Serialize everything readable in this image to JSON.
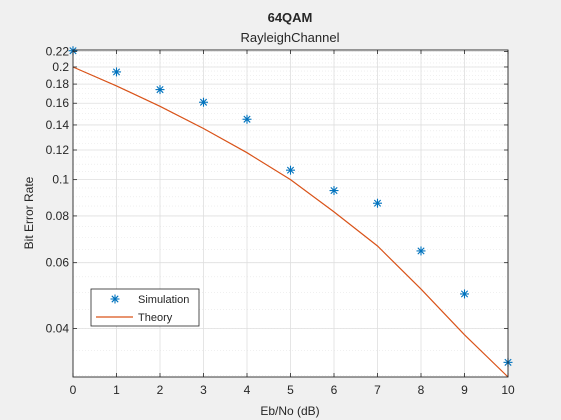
{
  "chart_data": {
    "type": "scatter",
    "title": "64QAM",
    "subtitle": "RayleighChannel",
    "xlabel": "Eb/No (dB)",
    "ylabel": "Bit Error Rate",
    "x": [
      0,
      1,
      2,
      3,
      4,
      5,
      6,
      7,
      8,
      9,
      10
    ],
    "xlim": [
      0,
      10
    ],
    "ylim": [
      0.0297,
      0.222
    ],
    "yscale": "log",
    "grid": true,
    "minor_grid": true,
    "xticks": [
      "0",
      "1",
      "2",
      "3",
      "4",
      "5",
      "6",
      "7",
      "8",
      "9",
      "10"
    ],
    "yticks": [
      {
        "value": 0.04,
        "label": "0.04"
      },
      {
        "value": 0.06,
        "label": "0.06"
      },
      {
        "value": 0.08,
        "label": "0.08"
      },
      {
        "value": 0.1,
        "label": "0.1"
      },
      {
        "value": 0.12,
        "label": "0.12"
      },
      {
        "value": 0.14,
        "label": "0.14"
      },
      {
        "value": 0.16,
        "label": "0.16"
      },
      {
        "value": 0.18,
        "label": "0.18"
      },
      {
        "value": 0.2,
        "label": "0.2"
      },
      {
        "value": 0.22,
        "label": "0.22"
      }
    ],
    "legend_position": "bottom-left",
    "series": [
      {
        "name": "Simulation",
        "style": "markers",
        "marker": "asterisk",
        "color": "#0072bd",
        "values": [
          0.221,
          0.194,
          0.174,
          0.161,
          0.145,
          0.106,
          0.0935,
          0.0865,
          0.0645,
          0.0495,
          0.0325
        ]
      },
      {
        "name": "Theory",
        "style": "line",
        "color": "#d95319",
        "values": [
          0.2,
          0.178,
          0.157,
          0.137,
          0.118,
          0.1,
          0.082,
          0.0665,
          0.051,
          0.0385,
          0.0297
        ]
      }
    ]
  },
  "colors": {
    "figure_background": "#f0f0f0",
    "axes_background": "#ffffff",
    "axis_color": "#262626",
    "grid_color": "#dfdfdf",
    "minor_grid_color": "#e6e6e6"
  }
}
